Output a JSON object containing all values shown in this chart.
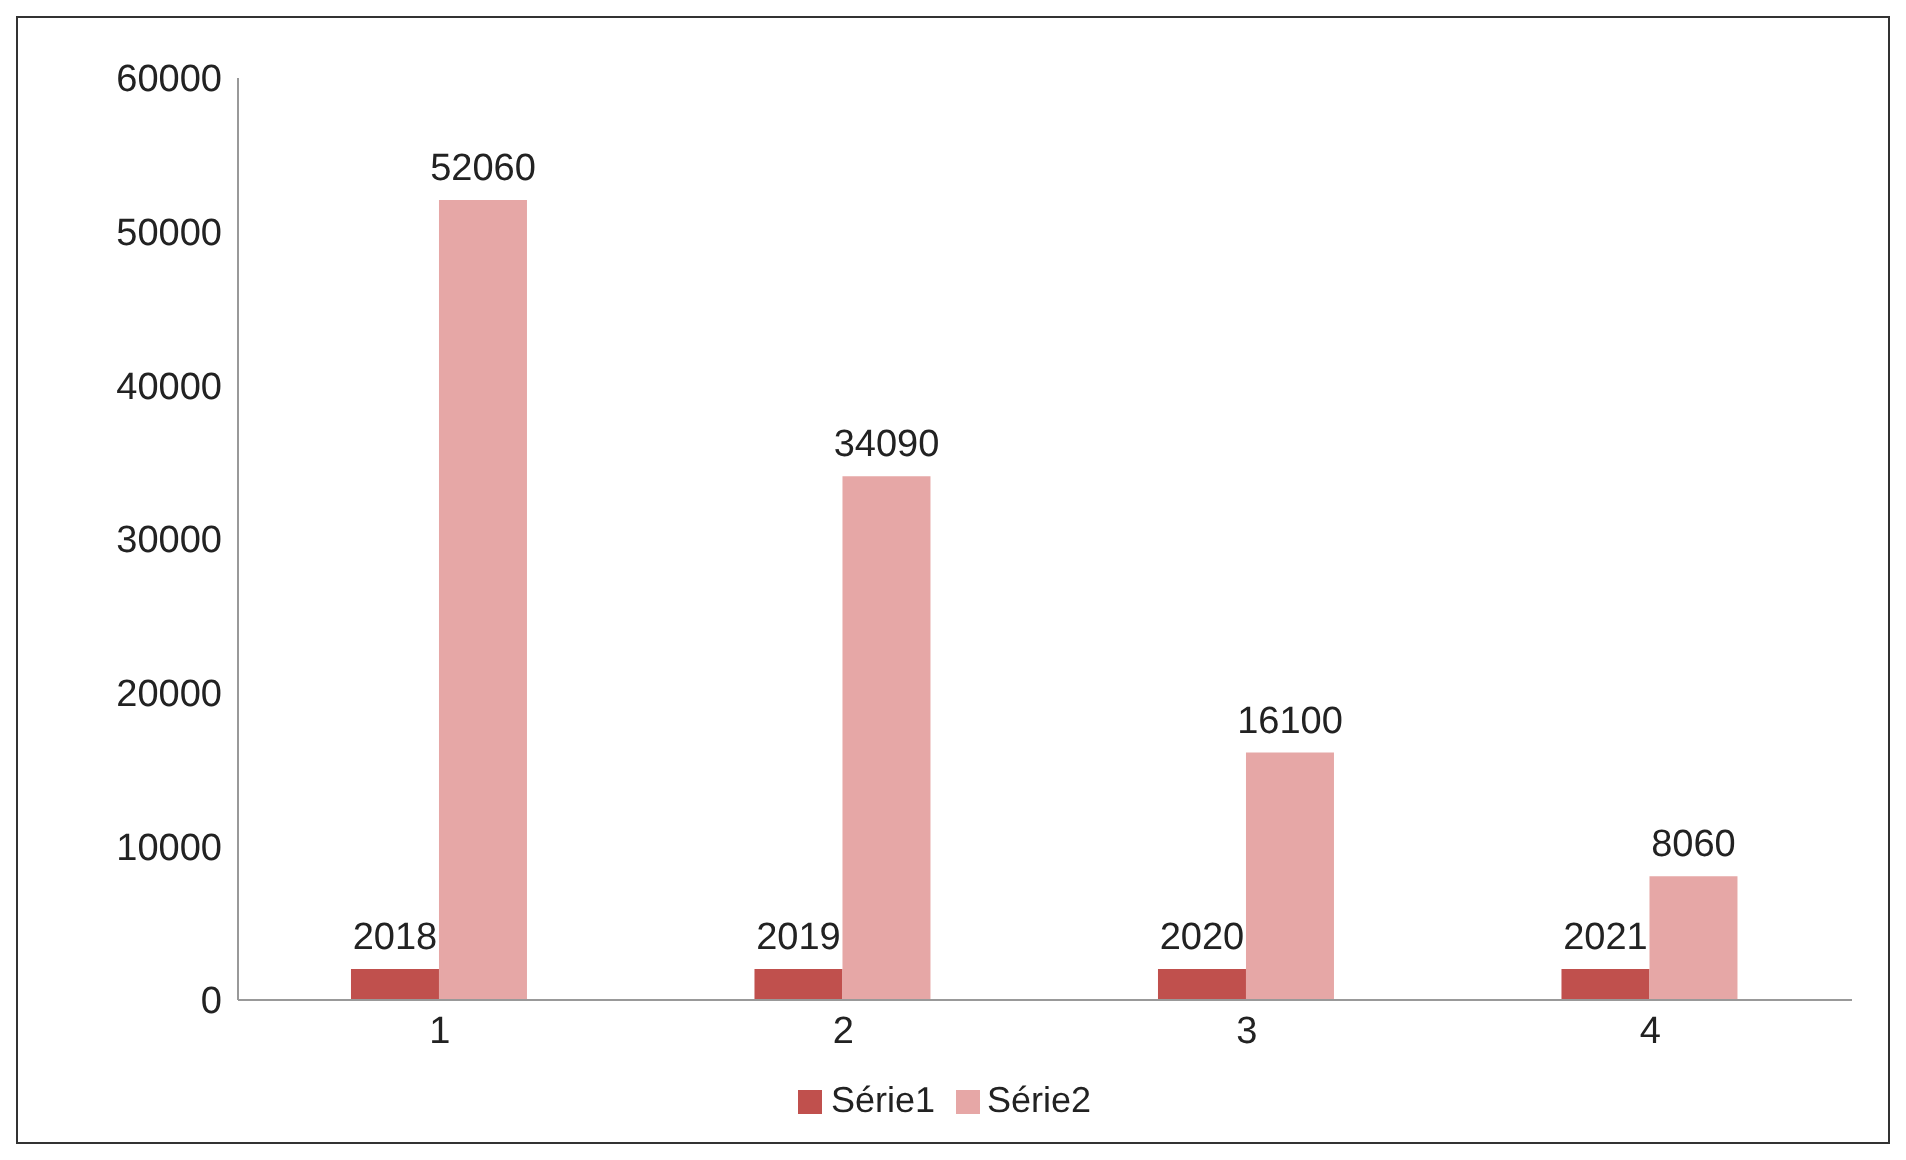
{
  "chart_data": {
    "type": "bar",
    "categories": [
      "1",
      "2",
      "3",
      "4"
    ],
    "series": [
      {
        "name": "Série1",
        "color": "#c0504d",
        "values": [
          2018,
          2019,
          2020,
          2021
        ]
      },
      {
        "name": "Série2",
        "color": "#e6a7a6",
        "values": [
          52060,
          34090,
          16100,
          8060
        ]
      }
    ],
    "ylim": [
      0,
      60000
    ],
    "yticks": [
      0,
      10000,
      20000,
      30000,
      40000,
      50000,
      60000
    ],
    "grid": false,
    "legend": "bottom",
    "data_labels": true
  }
}
